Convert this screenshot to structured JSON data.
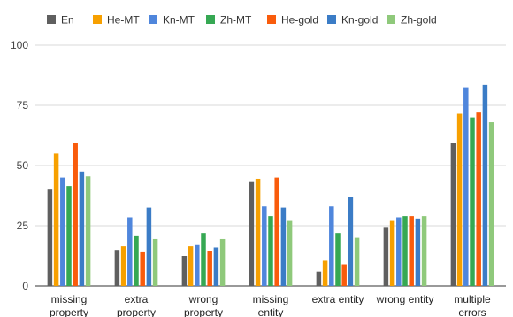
{
  "chart_data": {
    "type": "bar",
    "title": "",
    "xlabel": "",
    "ylabel": "",
    "ylim": [
      0,
      100
    ],
    "yticks": [
      0,
      25,
      50,
      75,
      100
    ],
    "grid": true,
    "legend_position": "top",
    "categories": [
      [
        "missing",
        "property"
      ],
      [
        "extra",
        "property"
      ],
      [
        "wrong",
        "property"
      ],
      [
        "missing",
        "entity"
      ],
      [
        "extra entity"
      ],
      [
        "wrong entity"
      ],
      [
        "multiple",
        "errors"
      ]
    ],
    "series": [
      {
        "name": "En",
        "color": "#5f5f5f",
        "values": [
          40.0,
          15.0,
          12.5,
          43.5,
          6.0,
          24.5,
          59.5
        ]
      },
      {
        "name": "He-MT",
        "color": "#f7a000",
        "values": [
          55.0,
          16.5,
          16.5,
          44.5,
          10.5,
          27.0,
          71.5
        ]
      },
      {
        "name": "Kn-MT",
        "color": "#4f86dc",
        "values": [
          45.0,
          28.5,
          17.0,
          33.0,
          33.0,
          28.5,
          82.5
        ]
      },
      {
        "name": "Zh-MT",
        "color": "#36a853",
        "values": [
          41.5,
          21.0,
          22.0,
          29.0,
          22.0,
          29.0,
          70.0
        ]
      },
      {
        "name": "He-gold",
        "color": "#f95c0c",
        "values": [
          59.5,
          14.0,
          14.5,
          45.0,
          9.0,
          29.0,
          72.0
        ]
      },
      {
        "name": "Kn-gold",
        "color": "#3b7cc6",
        "values": [
          47.5,
          32.5,
          16.0,
          32.5,
          37.0,
          28.0,
          83.5
        ]
      },
      {
        "name": "Zh-gold",
        "color": "#8fc97b",
        "values": [
          45.5,
          19.5,
          19.5,
          27.0,
          20.0,
          29.0,
          68.0
        ]
      }
    ]
  }
}
